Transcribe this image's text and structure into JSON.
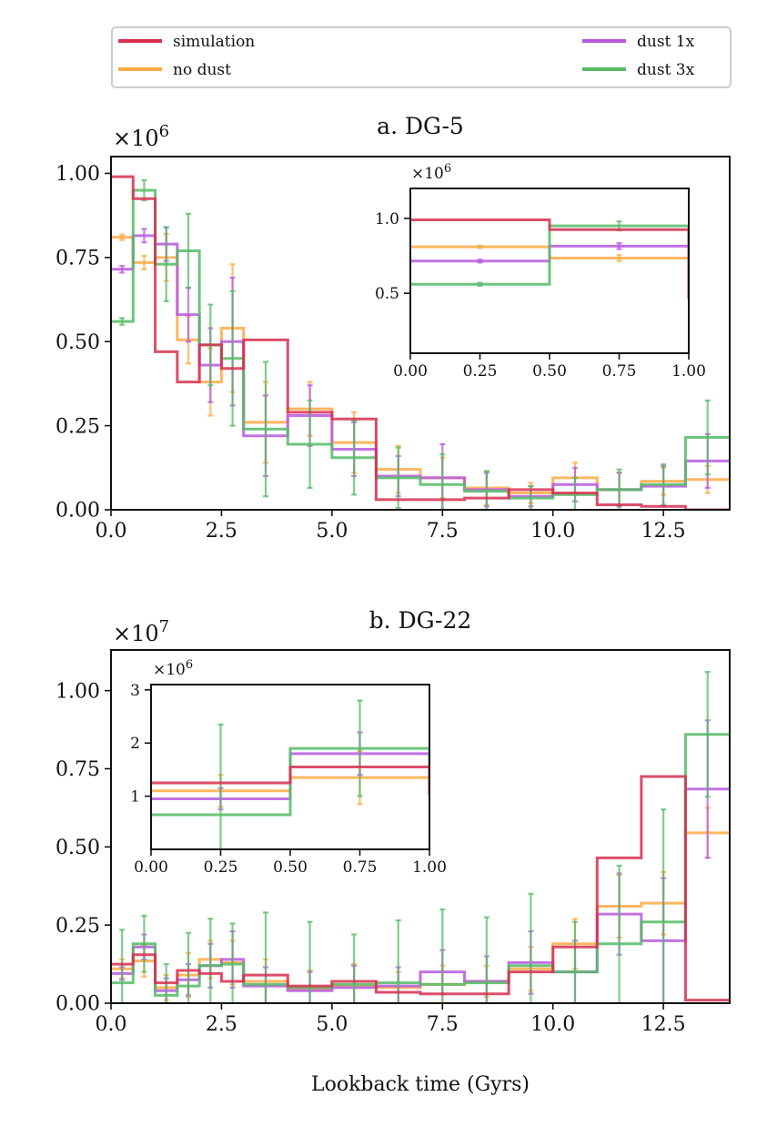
{
  "legend": {
    "entries": [
      {
        "label": "simulation",
        "color": "#d62f4f"
      },
      {
        "label": "no dust",
        "color": "#ffaa44"
      },
      {
        "label": "dust 1x",
        "color": "#b858e0"
      },
      {
        "label": "dust 3x",
        "color": "#55bb66"
      }
    ]
  },
  "xlabel": "Lookback time (Gyrs)",
  "chart_data": [
    {
      "type": "line",
      "title": "a. DG-5",
      "scale_label": "×10",
      "scale_exp": "6",
      "xlim": [
        0,
        14
      ],
      "ylim": [
        0,
        1.05
      ],
      "xticks": [
        0,
        2.5,
        5,
        7.5,
        10,
        12.5
      ],
      "xticklabels": [
        "0.0",
        "2.5",
        "5.0",
        "7.5",
        "10.0",
        "12.5"
      ],
      "yticks": [
        0,
        0.25,
        0.5,
        0.75,
        1.0
      ],
      "yticklabels": [
        "0.00",
        "0.25",
        "0.50",
        "0.75",
        "1.00"
      ],
      "bin_edges": [
        0,
        0.5,
        1,
        1.5,
        2,
        2.5,
        3,
        4,
        5,
        6,
        7,
        8,
        9,
        10,
        11,
        12,
        13,
        14
      ],
      "series": [
        {
          "name": "simulation",
          "color": "#d62f4f",
          "values": [
            0.99,
            0.925,
            0.47,
            0.38,
            0.49,
            0.42,
            0.505,
            0.29,
            0.27,
            0.03,
            0.03,
            0.035,
            0.06,
            0.05,
            0.015,
            0.01,
            0.0
          ],
          "errors": []
        },
        {
          "name": "no dust",
          "color": "#ffaa44",
          "values": [
            0.81,
            0.735,
            0.75,
            0.505,
            0.38,
            0.54,
            0.26,
            0.3,
            0.2,
            0.12,
            0.095,
            0.065,
            0.05,
            0.095,
            0.06,
            0.085,
            0.09
          ],
          "errors": [
            0.008,
            0.02,
            0.07,
            0.07,
            0.1,
            0.19,
            0.12,
            0.08,
            0.09,
            0.07,
            0.06,
            0.05,
            0.03,
            0.045,
            0.05,
            0.04,
            0.04
          ]
        },
        {
          "name": "dust 1x",
          "color": "#b858e0",
          "values": [
            0.715,
            0.815,
            0.79,
            0.58,
            0.43,
            0.5,
            0.22,
            0.28,
            0.18,
            0.1,
            0.095,
            0.06,
            0.04,
            0.075,
            0.06,
            0.07,
            0.145
          ],
          "errors": [
            0.01,
            0.02,
            0.05,
            0.08,
            0.11,
            0.19,
            0.12,
            0.09,
            0.08,
            0.06,
            0.1,
            0.05,
            0.03,
            0.05,
            0.05,
            0.06,
            0.08
          ]
        },
        {
          "name": "dust 3x",
          "color": "#55bb66",
          "values": [
            0.56,
            0.95,
            0.73,
            0.77,
            0.49,
            0.45,
            0.24,
            0.195,
            0.155,
            0.095,
            0.075,
            0.055,
            0.035,
            0.045,
            0.06,
            0.075,
            0.215
          ],
          "errors": [
            0.01,
            0.03,
            0.11,
            0.11,
            0.12,
            0.2,
            0.2,
            0.13,
            0.11,
            0.09,
            0.09,
            0.06,
            0.035,
            0.05,
            0.06,
            0.06,
            0.11
          ]
        }
      ],
      "inset": {
        "scale_label": "×10",
        "scale_exp": "6",
        "xlim": [
          0,
          1
        ],
        "ylim": [
          0.1,
          1.2
        ],
        "xticks": [
          0,
          0.25,
          0.5,
          0.75,
          1.0
        ],
        "xticklabels": [
          "0.00",
          "0.25",
          "0.50",
          "0.75",
          "1.00"
        ],
        "yticks": [
          0.5,
          1.0
        ],
        "yticklabels": [
          "0.5",
          "1.0"
        ]
      }
    },
    {
      "type": "line",
      "title": "b. DG-22",
      "scale_label": "×10",
      "scale_exp": "7",
      "xlim": [
        0,
        14
      ],
      "ylim": [
        0,
        1.13
      ],
      "xticks": [
        0,
        2.5,
        5,
        7.5,
        10,
        12.5
      ],
      "xticklabels": [
        "0.0",
        "2.5",
        "5.0",
        "7.5",
        "10.0",
        "12.5"
      ],
      "yticks": [
        0,
        0.25,
        0.5,
        0.75,
        1.0
      ],
      "yticklabels": [
        "0.00",
        "0.25",
        "0.50",
        "0.75",
        "1.00"
      ],
      "bin_edges": [
        0,
        0.5,
        1,
        1.5,
        2,
        2.5,
        3,
        4,
        5,
        6,
        7,
        8,
        9,
        10,
        11,
        12,
        13,
        14
      ],
      "series": [
        {
          "name": "simulation",
          "color": "#d62f4f",
          "values": [
            0.125,
            0.155,
            0.065,
            0.105,
            0.095,
            0.07,
            0.09,
            0.055,
            0.07,
            0.035,
            0.03,
            0.03,
            0.1,
            0.18,
            0.465,
            0.725,
            0.01
          ],
          "errors": []
        },
        {
          "name": "no dust",
          "color": "#ffaa44",
          "values": [
            0.11,
            0.135,
            0.05,
            0.09,
            0.14,
            0.13,
            0.07,
            0.045,
            0.055,
            0.05,
            0.06,
            0.07,
            0.11,
            0.19,
            0.31,
            0.32,
            0.545
          ],
          "errors": [
            0.03,
            0.05,
            0.04,
            0.07,
            0.06,
            0.07,
            0.07,
            0.06,
            0.07,
            0.05,
            0.06,
            0.05,
            0.07,
            0.08,
            0.1,
            0.1,
            0.08
          ]
        },
        {
          "name": "dust 1x",
          "color": "#b858e0",
          "values": [
            0.095,
            0.18,
            0.04,
            0.075,
            0.12,
            0.14,
            0.055,
            0.04,
            0.05,
            0.055,
            0.1,
            0.07,
            0.13,
            0.1,
            0.285,
            0.2,
            0.685
          ],
          "errors": [
            0.02,
            0.04,
            0.04,
            0.05,
            0.07,
            0.09,
            0.06,
            0.06,
            0.07,
            0.06,
            0.07,
            0.08,
            0.1,
            0.1,
            0.13,
            0.2,
            0.22
          ]
        },
        {
          "name": "dust 3x",
          "color": "#55bb66",
          "values": [
            0.065,
            0.19,
            0.025,
            0.055,
            0.12,
            0.125,
            0.06,
            0.05,
            0.06,
            0.065,
            0.06,
            0.065,
            0.12,
            0.1,
            0.19,
            0.26,
            0.86
          ],
          "errors": [
            0.17,
            0.09,
            0.1,
            0.17,
            0.15,
            0.13,
            0.23,
            0.21,
            0.16,
            0.2,
            0.24,
            0.21,
            0.23,
            0.16,
            0.25,
            0.36,
            0.2
          ]
        }
      ],
      "inset": {
        "scale_label": "×10",
        "scale_exp": "6",
        "xlim": [
          0,
          1
        ],
        "ylim": [
          0,
          3.1
        ],
        "xticks": [
          0,
          0.25,
          0.5,
          0.75,
          1.0
        ],
        "xticklabels": [
          "0.00",
          "0.25",
          "0.50",
          "0.75",
          "1.00"
        ],
        "yticks": [
          1,
          2,
          3
        ],
        "yticklabels": [
          "1",
          "2",
          "3"
        ]
      }
    }
  ]
}
